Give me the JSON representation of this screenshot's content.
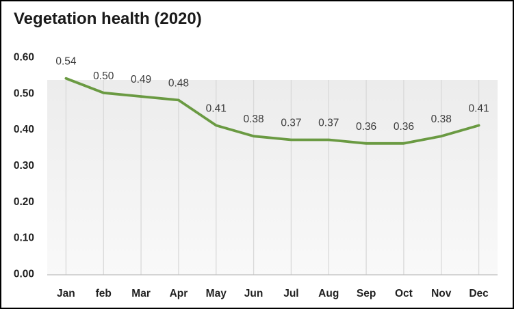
{
  "chart_data": {
    "type": "line",
    "title": "Vegetation health (2020)",
    "categories": [
      "Jan",
      "feb",
      "Mar",
      "Apr",
      "May",
      "Jun",
      "Jul",
      "Aug",
      "Sep",
      "Oct",
      "Nov",
      "Dec"
    ],
    "values": [
      0.54,
      0.5,
      0.49,
      0.48,
      0.41,
      0.38,
      0.37,
      0.37,
      0.36,
      0.36,
      0.38,
      0.41
    ],
    "data_labels": [
      "0.54",
      "0.50",
      "0.49",
      "0.48",
      "0.41",
      "0.38",
      "0.37",
      "0.37",
      "0.36",
      "0.36",
      "0.38",
      "0.41"
    ],
    "yticks": [
      "0.00",
      "0.10",
      "0.20",
      "0.30",
      "0.40",
      "0.50",
      "0.60"
    ],
    "ylim": [
      0,
      0.6
    ],
    "xlabel": "",
    "ylabel": "",
    "legend": "none",
    "grid": "vertical-only",
    "colors": {
      "line": "#6A9A42",
      "plot_bg_top": "#ececec",
      "plot_bg_bottom": "#f9f9f9",
      "gridline": "#d9d9d9",
      "axis_line": "#bfbfbf",
      "data_label_text": "#3a3a3a",
      "tick_text": "#1f1f1f",
      "title_text": "#1a1a1a",
      "frame_border": "#000000"
    }
  }
}
